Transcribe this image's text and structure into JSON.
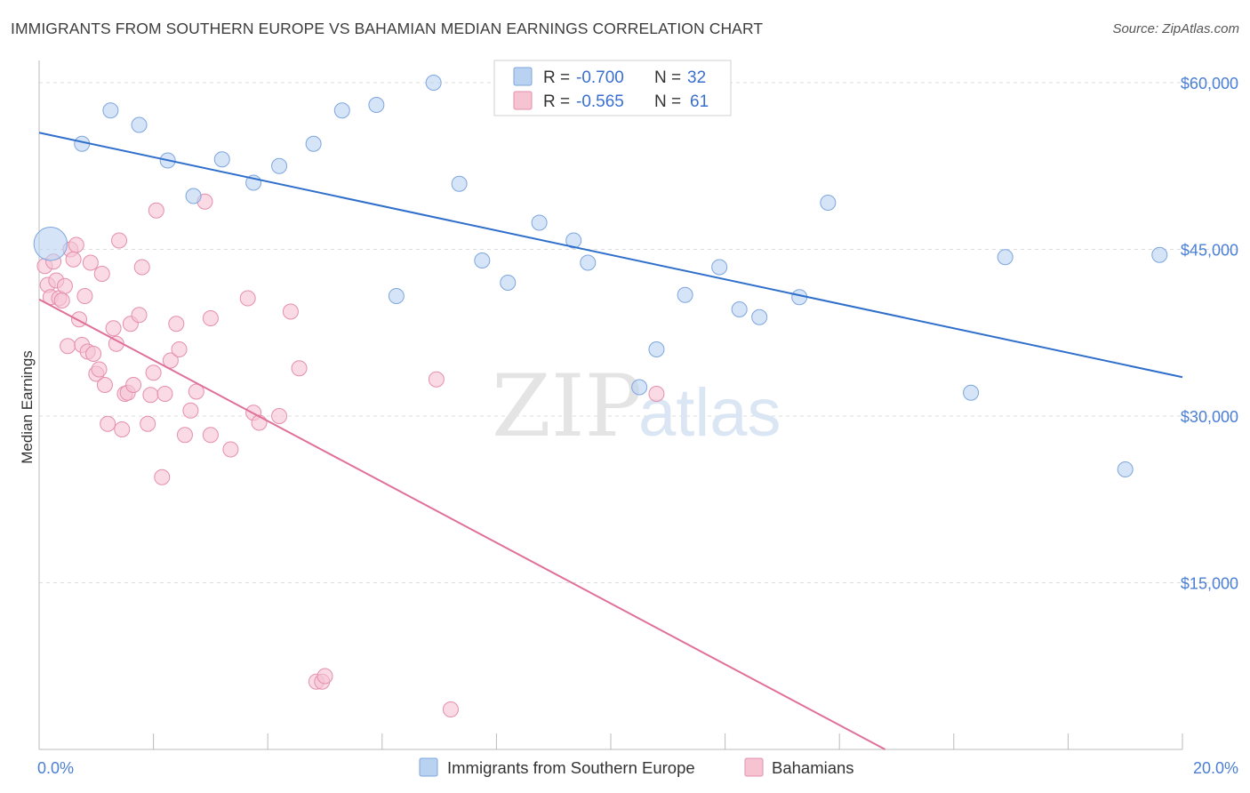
{
  "title": "IMMIGRANTS FROM SOUTHERN EUROPE VS BAHAMIAN MEDIAN EARNINGS CORRELATION CHART",
  "source": "Source: ZipAtlas.com",
  "watermark": {
    "zip": "ZIP",
    "atlas": "atlas"
  },
  "colors": {
    "blue_fill": "#b9d2f2",
    "blue_stroke": "#7ea6de",
    "blue_line": "#2f6fcc",
    "pink_fill": "#f6c3d3",
    "pink_stroke": "#e58fab",
    "pink_line": "#e0709a",
    "grid": "#dddddd",
    "tick_text": "#4a7fd4"
  },
  "legend": {
    "rows": [
      {
        "r_label": "R =",
        "r_value": "-0.700",
        "n_label": "N =",
        "n_value": "32"
      },
      {
        "r_label": "R =",
        "r_value": "-0.565",
        "n_label": "N =",
        "n_value": "61"
      }
    ]
  },
  "chart_data": {
    "type": "scatter",
    "title": "IMMIGRANTS FROM SOUTHERN EUROPE VS BAHAMIAN MEDIAN EARNINGS CORRELATION CHART",
    "xlabel": "",
    "ylabel": "Median Earnings",
    "xlim": [
      0,
      20
    ],
    "ylim": [
      0,
      62000
    ],
    "x_tick_labels": [
      "0.0%",
      "20.0%"
    ],
    "y_ticks": [
      15000,
      30000,
      45000,
      60000
    ],
    "y_tick_labels": [
      "$15,000",
      "$30,000",
      "$45,000",
      "$60,000"
    ],
    "grid": true,
    "legend_position": "top-center",
    "series": [
      {
        "name": "Immigrants from Southern Europe",
        "r": -0.7,
        "n": 32,
        "trend": {
          "x0": 0,
          "y0": 55500,
          "x1": 20,
          "y1": 33500
        },
        "points": [
          {
            "x": 0.2,
            "y": 45500,
            "s": 2.2
          },
          {
            "x": 0.75,
            "y": 54500
          },
          {
            "x": 1.25,
            "y": 57500
          },
          {
            "x": 1.75,
            "y": 56200
          },
          {
            "x": 2.25,
            "y": 53000
          },
          {
            "x": 2.7,
            "y": 49800
          },
          {
            "x": 3.2,
            "y": 53100
          },
          {
            "x": 3.75,
            "y": 51000
          },
          {
            "x": 4.2,
            "y": 52500
          },
          {
            "x": 4.8,
            "y": 54500
          },
          {
            "x": 5.3,
            "y": 57500
          },
          {
            "x": 5.9,
            "y": 58000
          },
          {
            "x": 6.25,
            "y": 40800
          },
          {
            "x": 6.9,
            "y": 60000
          },
          {
            "x": 7.35,
            "y": 50900
          },
          {
            "x": 7.75,
            "y": 44000
          },
          {
            "x": 8.2,
            "y": 42000
          },
          {
            "x": 8.75,
            "y": 47400
          },
          {
            "x": 9.35,
            "y": 45800
          },
          {
            "x": 9.6,
            "y": 43800
          },
          {
            "x": 10.5,
            "y": 32600
          },
          {
            "x": 10.8,
            "y": 36000
          },
          {
            "x": 11.3,
            "y": 40900
          },
          {
            "x": 11.9,
            "y": 43400
          },
          {
            "x": 12.25,
            "y": 39600
          },
          {
            "x": 12.6,
            "y": 38900
          },
          {
            "x": 13.3,
            "y": 40700
          },
          {
            "x": 13.8,
            "y": 49200
          },
          {
            "x": 16.3,
            "y": 32100
          },
          {
            "x": 16.9,
            "y": 44300
          },
          {
            "x": 19.0,
            "y": 25200
          },
          {
            "x": 19.6,
            "y": 44500
          }
        ]
      },
      {
        "name": "Bahamians",
        "r": -0.565,
        "n": 61,
        "trend": {
          "x0": 0,
          "y0": 40500,
          "x1": 14.8,
          "y1": 0
        },
        "points": [
          {
            "x": 0.1,
            "y": 43500
          },
          {
            "x": 0.15,
            "y": 41800
          },
          {
            "x": 0.2,
            "y": 40700
          },
          {
            "x": 0.25,
            "y": 43900
          },
          {
            "x": 0.3,
            "y": 42200
          },
          {
            "x": 0.35,
            "y": 40600
          },
          {
            "x": 0.4,
            "y": 40400
          },
          {
            "x": 0.45,
            "y": 41700
          },
          {
            "x": 0.5,
            "y": 36300
          },
          {
            "x": 0.55,
            "y": 45000
          },
          {
            "x": 0.6,
            "y": 44100
          },
          {
            "x": 0.65,
            "y": 45400
          },
          {
            "x": 0.7,
            "y": 38700
          },
          {
            "x": 0.75,
            "y": 36400
          },
          {
            "x": 0.8,
            "y": 40800
          },
          {
            "x": 0.85,
            "y": 35800
          },
          {
            "x": 0.9,
            "y": 43800
          },
          {
            "x": 0.95,
            "y": 35600
          },
          {
            "x": 1.0,
            "y": 33800
          },
          {
            "x": 1.05,
            "y": 34200
          },
          {
            "x": 1.1,
            "y": 42800
          },
          {
            "x": 1.15,
            "y": 32800
          },
          {
            "x": 1.2,
            "y": 29300
          },
          {
            "x": 1.3,
            "y": 37900
          },
          {
            "x": 1.35,
            "y": 36500
          },
          {
            "x": 1.4,
            "y": 45800
          },
          {
            "x": 1.45,
            "y": 28800
          },
          {
            "x": 1.5,
            "y": 32000
          },
          {
            "x": 1.55,
            "y": 32100
          },
          {
            "x": 1.6,
            "y": 38300
          },
          {
            "x": 1.65,
            "y": 32800
          },
          {
            "x": 1.75,
            "y": 39100
          },
          {
            "x": 1.8,
            "y": 43400
          },
          {
            "x": 1.9,
            "y": 29300
          },
          {
            "x": 1.95,
            "y": 31900
          },
          {
            "x": 2.0,
            "y": 33900
          },
          {
            "x": 2.05,
            "y": 48500
          },
          {
            "x": 2.15,
            "y": 24500
          },
          {
            "x": 2.2,
            "y": 32000
          },
          {
            "x": 2.3,
            "y": 35000
          },
          {
            "x": 2.4,
            "y": 38300
          },
          {
            "x": 2.45,
            "y": 36000
          },
          {
            "x": 2.55,
            "y": 28300
          },
          {
            "x": 2.65,
            "y": 30500
          },
          {
            "x": 2.75,
            "y": 32200
          },
          {
            "x": 2.9,
            "y": 49300
          },
          {
            "x": 3.0,
            "y": 38800
          },
          {
            "x": 3.0,
            "y": 28300
          },
          {
            "x": 3.35,
            "y": 27000
          },
          {
            "x": 3.65,
            "y": 40600
          },
          {
            "x": 3.75,
            "y": 30300
          },
          {
            "x": 3.85,
            "y": 29400
          },
          {
            "x": 4.2,
            "y": 30000
          },
          {
            "x": 4.4,
            "y": 39400
          },
          {
            "x": 4.55,
            "y": 34300
          },
          {
            "x": 4.85,
            "y": 6100
          },
          {
            "x": 4.95,
            "y": 6100
          },
          {
            "x": 5.0,
            "y": 6600
          },
          {
            "x": 6.95,
            "y": 33300
          },
          {
            "x": 7.2,
            "y": 3600
          },
          {
            "x": 10.8,
            "y": 32000
          }
        ]
      }
    ]
  }
}
